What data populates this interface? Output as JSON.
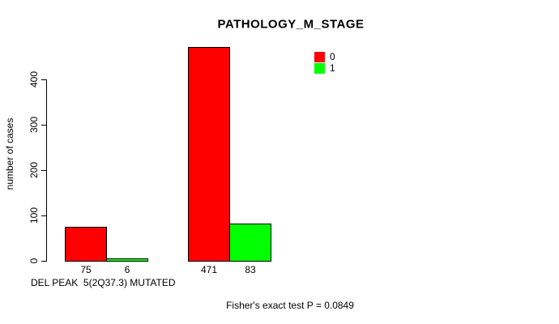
{
  "chart_data": {
    "type": "bar",
    "title": "PATHOLOGY_M_STAGE",
    "ylabel": "number of cases",
    "xlabel": "DEL PEAK  5(2Q37.3) MUTATED",
    "categories": [
      "",
      ""
    ],
    "series": [
      {
        "name": "0",
        "color": "#ff0000",
        "values": [
          75,
          471
        ]
      },
      {
        "name": "1",
        "color": "#00ff00",
        "values": [
          6,
          83
        ]
      }
    ],
    "bar_value_labels": [
      [
        75,
        6
      ],
      [
        471,
        83
      ]
    ],
    "yticks": [
      0,
      100,
      200,
      300,
      400
    ],
    "ylim": [
      0,
      471
    ],
    "grid": false,
    "legend_position": "top-right-inside",
    "annotation": "Fisher's exact test P = 0.0849",
    "colors": {
      "bar_border": "#000000",
      "axis": "#000000",
      "text": "#000000",
      "background": "#ffffff"
    }
  }
}
